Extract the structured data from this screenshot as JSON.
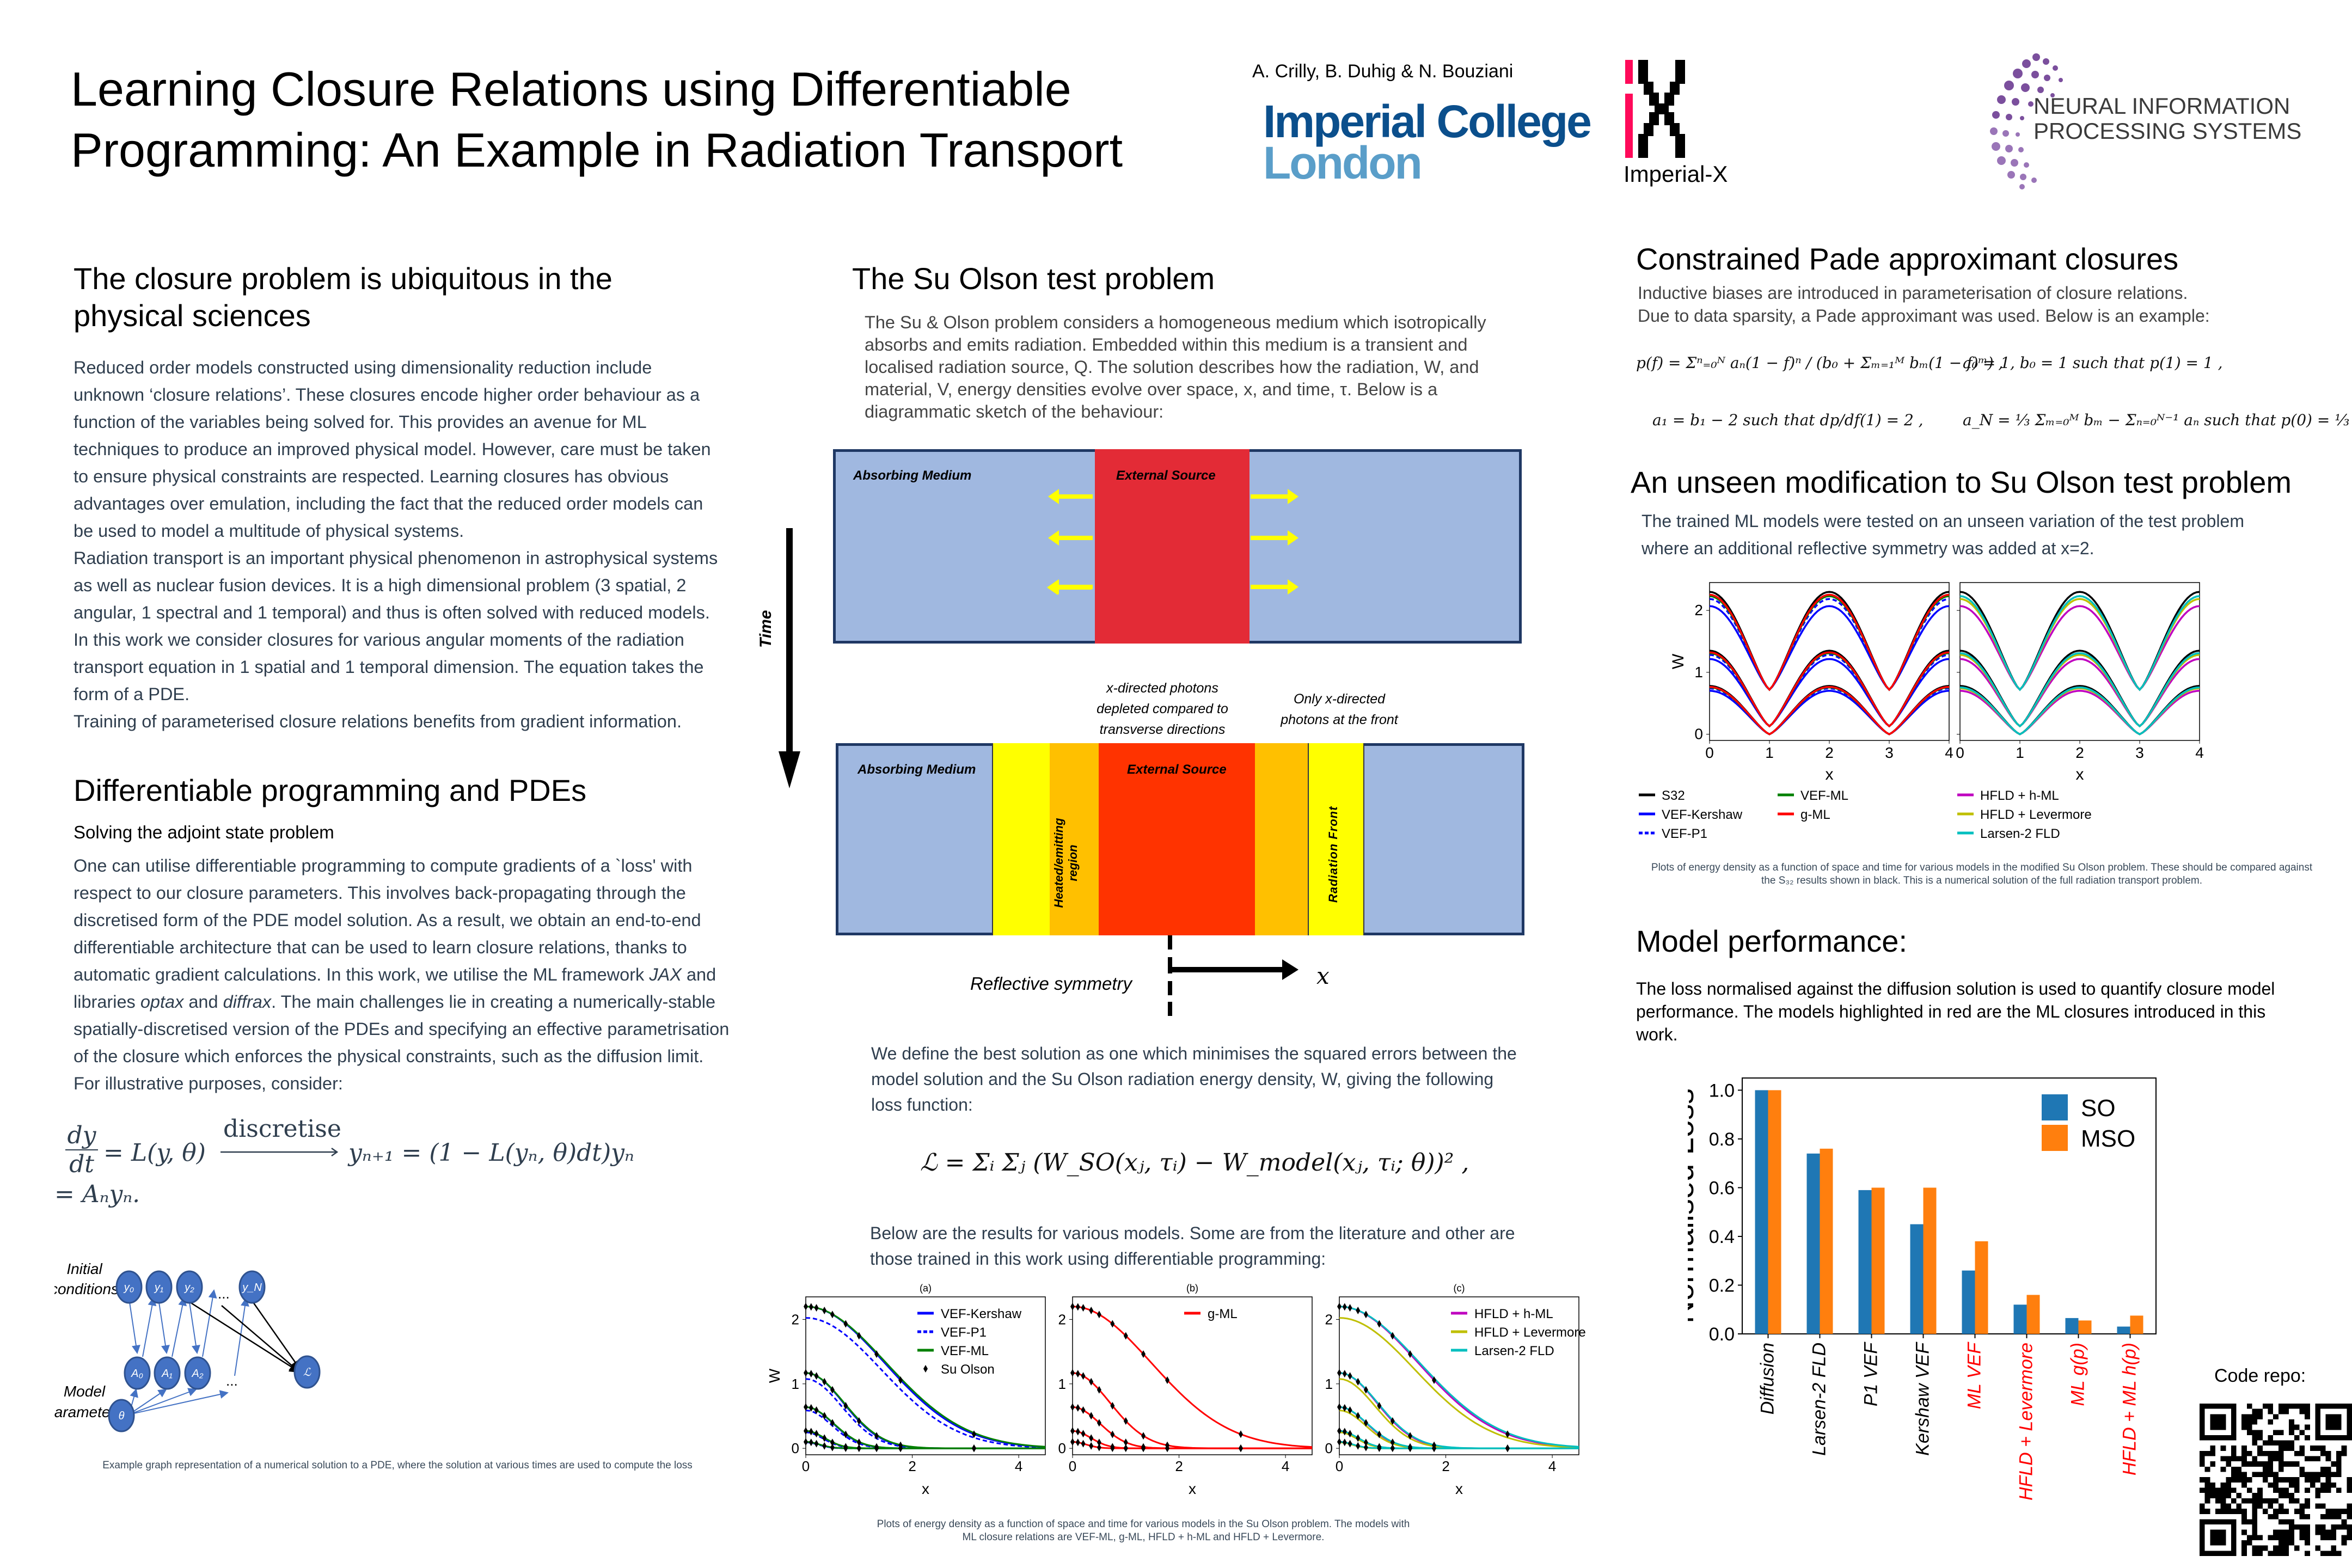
{
  "header": {
    "title_line1": "Learning Closure Relations using Differentiable",
    "title_line2": "Programming: An Example in Radiation Transport",
    "authors": "A. Crilly, B. Duhig & N. Bouziani",
    "logos": {
      "imperial_line1": "Imperial College",
      "imperial_line2": "London",
      "imperial_x": "Imperial-X",
      "neurips_line1": "NEURAL INFORMATION",
      "neurips_line2": "PROCESSING SYSTEMS"
    },
    "colors": {
      "imperial_blue": "#0b4f8c",
      "imperial_light": "#5a9ec9",
      "ix_pink": "#ff0a5a",
      "neurips_purple": "#7b4f9d"
    }
  },
  "closure": {
    "heading": "The closure problem is ubiquitous in the physical sciences",
    "paragraph1": "Reduced order models constructed using dimensionality reduction include unknown ‘closure relations’. These closures encode higher order behaviour as a function of the variables being solved for. This provides an avenue for ML techniques to produce an improved physical model. However, care must be taken to ensure physical constraints are respected. Learning closures has obvious advantages over emulation, including the fact that the reduced order models can be used to model a multitude of physical systems.",
    "paragraph2": "Radiation transport is an important physical phenomenon in astrophysical systems as well as nuclear fusion devices. It is a high dimensional problem (3 spatial, 2 angular, 1 spectral and 1 temporal) and thus is often solved with reduced models. In this work we consider closures for various angular moments of the radiation transport equation in 1 spatial and 1 temporal dimension. The equation takes the form of a PDE.",
    "paragraph3": "Training of parameterised closure relations benefits from gradient information."
  },
  "diffprog": {
    "heading": "Differentiable programming and PDEs",
    "subheading": "Solving the adjoint state problem",
    "paragraph_a": "One can utilise differentiable programming to compute gradients of a `loss' with respect to our closure parameters. This involves back-propagating through the discretised form of the PDE model solution. As a result, we obtain an end-to-end differentiable architecture that can be used to learn closure relations, thanks to automatic gradient calculations. In this work, we utilise the ML framework ",
    "jax": "JAX",
    "and_libraries": " and libraries ",
    "optax": "optax",
    "and": " and ",
    "diffrax": "diffrax",
    "paragraph_b": ". The main challenges lie in creating a numerically-stable spatially-discretised version of the PDEs and specifying an effective parametrisation of the closure which enforces the physical constraints, such as the diffusion limit.",
    "illustrative": "For illustrative purposes, consider:",
    "eq_lhs_num": "dy",
    "eq_lhs_den": "dt",
    "eq_rhs1": "= L(y, θ)",
    "eq_arrow_label": "discretise",
    "eq_rhs2": "yₙ₊₁ = (1 − L(yₙ, θ)dt)yₙ",
    "eq_line2": "= Aₙyₙ.",
    "graph": {
      "label_initial": [
        "Initial",
        "conditions"
      ],
      "label_model": [
        "Model",
        "parameters"
      ],
      "top_nodes": [
        "y₀",
        "y₁",
        "y₂",
        "y_N"
      ],
      "mid_nodes": [
        "A₀",
        "A₁",
        "A₂"
      ],
      "theta": "θ",
      "loss": "ℒ",
      "ellipsis": "..."
    },
    "caption": "Example graph representation of a numerical solution to a PDE, where the solution at various times are used to compute the loss"
  },
  "suolson": {
    "heading": "The Su Olson test problem",
    "paragraph": "The Su & Olson problem considers a homogeneous medium which isotropically absorbs and emits radiation. Embedded within this medium is a transient and localised radiation source, Q. The solution describes how the radiation, W, and material, V, energy densities evolve over space, x, and time, τ. Below is a diagrammatic sketch of the behaviour:",
    "diagram": {
      "absorbing": "Absorbing Medium",
      "source": "External Source",
      "time": "Time",
      "xdirected": [
        "x-directed photons",
        "depleted compared to",
        "transverse directions"
      ],
      "only_x": [
        "Only x-directed",
        "photons at the front"
      ],
      "heated": [
        "Heated/emitting",
        "region"
      ],
      "front": "Radiation Front",
      "reflective": "Reflective symmetry",
      "x_axis": "x",
      "colors": {
        "medium": "#a0b8e0",
        "source_top": "#e32b36",
        "source_bottom": "#ff3300",
        "heated": "#ffc000",
        "front": "#ffff00",
        "arrows": "#ffff00"
      }
    },
    "loss_intro": "We define the best solution as one which minimises the squared errors between the model solution and the Su Olson radiation energy density, W, giving the following loss function:",
    "loss_formula": "ℒ = Σᵢ Σⱼ (W_SO(xⱼ, τᵢ) − W_model(xⱼ, τᵢ; θ))² ,",
    "results_intro": "Below are the results for various models. Some are from the literature and other are those trained in this work using differentiable programming:",
    "caption": "Plots of energy density as a function of space and time for various models in the Su Olson problem. The models with ML closure relations are VEF-ML, g-ML, HFLD + h-ML and HFLD + Levermore."
  },
  "pade": {
    "heading": "Constrained Pade approximant closures",
    "line1": "Inductive biases are introduced in parameterisation of closure relations.",
    "line2": "Due to data sparsity, a Pade approximant was used. Below is an example:",
    "eq1": "p(f) = Σⁿ₌₀ᴺ aₙ(1 − f)ⁿ / (b₀ + Σₘ₌₁ᴹ bₘ(1 − f)ᵐ) ,",
    "eq2": "a₀ = 1, b₀ = 1 such that p(1) = 1 ,",
    "eq3": "a₁ = b₁ − 2 such that dp/df(1) = 2 ,",
    "eq4": "a_N = ⅓ Σₘ₌₀ᴹ bₘ − Σₙ₌₀ᴺ⁻¹ aₙ such that p(0) = ⅓ ,"
  },
  "unseen": {
    "heading": "An unseen modification to Su Olson test problem",
    "paragraph": "The trained ML models were tested on an unseen variation of the test problem where an additional reflective symmetry was added at x=2.",
    "caption": "Plots of energy density as a function of space and time for various models in the modified Su Olson problem. These should be compared against the S₃₂ results shown in black. This is a numerical solution of the full radiation transport problem."
  },
  "performance": {
    "heading": "Model performance:",
    "paragraph": "The loss normalised against the diffusion solution is used to quantify closure model performance. The models highlighted in red are the ML closures introduced in this work."
  },
  "code_repo": "Code repo:",
  "chart_data": [
    {
      "id": "su-olson-a",
      "type": "line",
      "title": "(a)",
      "xlabel": "x",
      "ylabel": "W",
      "xlim": [
        0,
        4.5
      ],
      "ylim": [
        -0.1,
        2.35
      ],
      "xticks": [
        0,
        2,
        4
      ],
      "yticks": [
        0,
        1,
        2
      ],
      "legend": "top-right",
      "series": [
        {
          "name": "VEF-Kershaw",
          "color": "#0000ff",
          "style": "solid"
        },
        {
          "name": "VEF-P1",
          "color": "#0000ff",
          "style": "dashed"
        },
        {
          "name": "VEF-ML",
          "color": "#008000",
          "style": "solid"
        },
        {
          "name": "Su Olson",
          "color": "#000000",
          "style": "diamond-markers"
        }
      ],
      "profiles": [
        {
          "peak": 2.2,
          "width": 1.3,
          "kind": "wide"
        },
        {
          "peak": 1.17,
          "width": 0.55,
          "kind": "mid"
        },
        {
          "peak": 0.63,
          "width": 0.35,
          "kind": "narrow"
        },
        {
          "peak": 0.27,
          "width": 0.25,
          "kind": "narrow"
        },
        {
          "peak": 0.1,
          "width": 0.2,
          "kind": "narrow"
        }
      ]
    },
    {
      "id": "su-olson-b",
      "type": "line",
      "title": "(b)",
      "xlabel": "x",
      "ylabel": "",
      "xlim": [
        0,
        4.5
      ],
      "ylim": [
        -0.1,
        2.35
      ],
      "xticks": [
        0,
        2,
        4
      ],
      "yticks": [
        0,
        1,
        2
      ],
      "legend": "top-right",
      "series": [
        {
          "name": "g-ML",
          "color": "#ff0000",
          "style": "solid"
        }
      ]
    },
    {
      "id": "su-olson-c",
      "type": "line",
      "title": "(c)",
      "xlabel": "x",
      "ylabel": "",
      "xlim": [
        0,
        4.5
      ],
      "ylim": [
        -0.1,
        2.35
      ],
      "xticks": [
        0,
        2,
        4
      ],
      "yticks": [
        0,
        1,
        2
      ],
      "legend": "top-right",
      "series": [
        {
          "name": "HFLD + h-ML",
          "color": "#bf00bf",
          "style": "solid"
        },
        {
          "name": "HFLD + Levermore",
          "color": "#bfbf00",
          "style": "solid"
        },
        {
          "name": "Larsen-2 FLD",
          "color": "#00bfbf",
          "style": "solid"
        }
      ]
    },
    {
      "id": "modified-so-left",
      "type": "line",
      "xlabel": "x",
      "ylabel": "W",
      "xlim": [
        0,
        4
      ],
      "ylim": [
        -0.1,
        2.45
      ],
      "xticks": [
        0,
        1,
        2,
        3,
        4
      ],
      "yticks": [
        0,
        1,
        2
      ],
      "series": [
        {
          "name": "S32",
          "color": "#000000",
          "style": "solid"
        },
        {
          "name": "VEF-Kershaw",
          "color": "#0000ff",
          "style": "solid"
        },
        {
          "name": "VEF-P1",
          "color": "#0000ff",
          "style": "dashed"
        },
        {
          "name": "VEF-ML",
          "color": "#008000",
          "style": "solid"
        },
        {
          "name": "g-ML",
          "color": "#ff0000",
          "style": "solid"
        }
      ]
    },
    {
      "id": "modified-so-right",
      "type": "line",
      "xlabel": "x",
      "ylabel": "",
      "xlim": [
        0,
        4
      ],
      "ylim": [
        -0.1,
        2.45
      ],
      "xticks": [
        0,
        1,
        2,
        3,
        4
      ],
      "yticks": [
        0,
        1,
        2
      ],
      "series": [
        {
          "name": "S32",
          "color": "#000000",
          "style": "solid"
        },
        {
          "name": "HFLD + h-ML",
          "color": "#bf00bf",
          "style": "solid"
        },
        {
          "name": "HFLD + Levermore",
          "color": "#bfbf00",
          "style": "solid"
        },
        {
          "name": "Larsen-2 FLD",
          "color": "#00bfbf",
          "style": "solid"
        }
      ]
    },
    {
      "id": "normalised-loss",
      "type": "bar",
      "title": "",
      "xlabel": "",
      "ylabel": "Normalised Loss",
      "ylim": [
        0,
        1.05
      ],
      "yticks": [
        0.0,
        0.2,
        0.4,
        0.6,
        0.8,
        1.0
      ],
      "legend": "top-right",
      "categories": [
        "Diffusion",
        "Larsen-2 FLD",
        "P1 VEF",
        "Kershaw VEF",
        "ML VEF",
        "HFLD + Levermore",
        "ML g(p)",
        "HFLD + ML h(p)"
      ],
      "category_is_ml": [
        false,
        false,
        false,
        false,
        true,
        true,
        true,
        true
      ],
      "series": [
        {
          "name": "SO",
          "color": "#1f77b4",
          "values": [
            1.0,
            0.74,
            0.59,
            0.45,
            0.26,
            0.12,
            0.065,
            0.03
          ]
        },
        {
          "name": "MSO",
          "color": "#ff7f0e",
          "values": [
            1.0,
            0.76,
            0.6,
            0.6,
            0.38,
            0.16,
            0.055,
            0.075
          ]
        }
      ]
    }
  ]
}
